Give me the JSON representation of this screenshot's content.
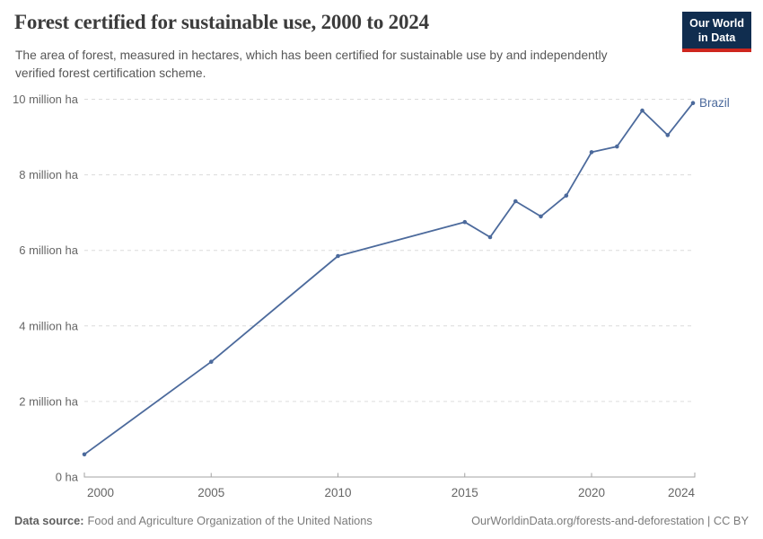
{
  "header": {
    "title": "Forest certified for sustainable use, 2000 to 2024",
    "subtitle_lines": [
      "The area of forest, measured in hectares, which has been certified for sustainable use by and independently",
      "verified forest certification scheme."
    ],
    "logo": {
      "line1": "Our World",
      "line2": "in Data",
      "bg_color": "#102d4f",
      "accent_color": "#ce261e"
    }
  },
  "chart_data": {
    "type": "line",
    "title": "Forest certified for sustainable use, 2000 to 2024",
    "unit": "million ha",
    "x": [
      2000,
      2005,
      2010,
      2015,
      2016,
      2017,
      2018,
      2019,
      2020,
      2021,
      2022,
      2023,
      2024
    ],
    "series": [
      {
        "name": "Brazil",
        "color": "#4c6a9c",
        "values": [
          0.6,
          3.05,
          5.85,
          6.75,
          6.35,
          7.3,
          6.9,
          7.45,
          8.6,
          8.75,
          9.7,
          9.05,
          9.9
        ]
      }
    ],
    "xlim": [
      2000,
      2024
    ],
    "ylim": [
      0,
      10
    ],
    "x_ticks": [
      2000,
      2005,
      2010,
      2015,
      2020,
      2024
    ],
    "y_ticks": [
      {
        "value": 0,
        "label": "0 ha"
      },
      {
        "value": 2,
        "label": "2 million ha"
      },
      {
        "value": 4,
        "label": "4 million ha"
      },
      {
        "value": 6,
        "label": "6 million ha"
      },
      {
        "value": 8,
        "label": "8 million ha"
      },
      {
        "value": 10,
        "label": "10 million ha"
      }
    ],
    "grid": "horizontal dashed",
    "legend_position": "end-of-line label"
  },
  "footer": {
    "datasource_label": "Data source:",
    "datasource_text": "Food and Agriculture Organization of the United Nations",
    "attribution": "OurWorldinData.org/forests-and-deforestation | CC BY"
  },
  "colors": {
    "line": "#4c6a9c",
    "grid": "#dcdcdc",
    "axis": "#a3a3a3",
    "tick_text": "#666666"
  }
}
